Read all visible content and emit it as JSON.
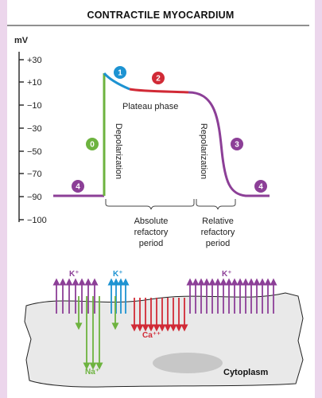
{
  "title": "CONTRACTILE MYOCARDIUM",
  "y_axis": {
    "unit": "mV",
    "ticks": [
      "+30",
      "+10",
      "−10",
      "−30",
      "−50",
      "−70",
      "−90",
      "−100"
    ]
  },
  "phases": {
    "phase0": "0",
    "phase1": "1",
    "phase2": "2",
    "phase3": "3",
    "phase4_left": "4",
    "phase4_right": "4"
  },
  "labels": {
    "plateau": "Plateau phase",
    "depolarization": "Depolarization",
    "repolarization": "Repolarization",
    "absolute": [
      "Absolute",
      "refactory",
      "period"
    ],
    "relative": [
      "Relative",
      "refactory",
      "period"
    ]
  },
  "ions": {
    "k_left": "K⁺",
    "k_mid": "K⁺",
    "k_right": "K⁺",
    "na": "Na⁺",
    "ca": "Ca⁺⁺"
  },
  "cytoplasm": "Cytoplasm",
  "colors": {
    "phase0": "#6db33f",
    "phase1": "#1d93d2",
    "phase2": "#d12a36",
    "phase3": "#8c3f97",
    "phase4": "#8c3f97",
    "k": "#8c3f97",
    "k_mid": "#1d93d2",
    "na": "#6db33f",
    "ca": "#d12a36",
    "membrane": "#e9e9e9"
  }
}
